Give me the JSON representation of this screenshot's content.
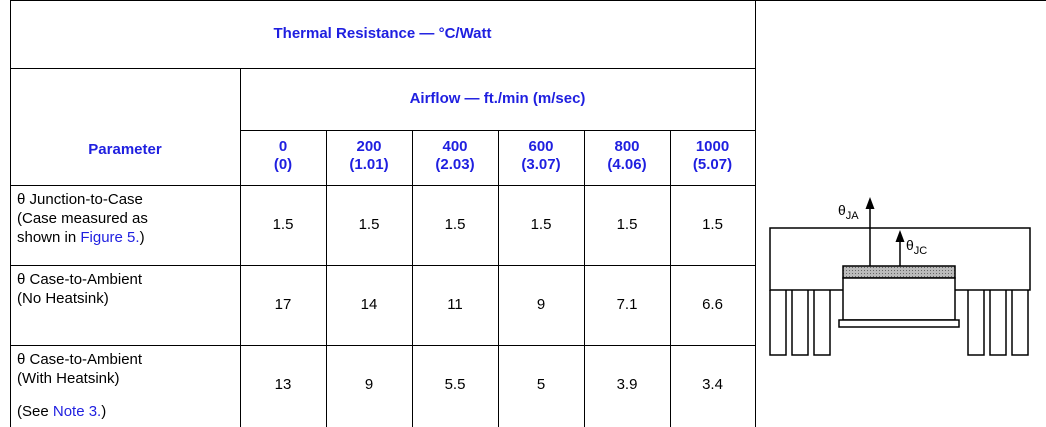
{
  "table": {
    "title": "Thermal Resistance — °C/Watt",
    "airflow": "Airflow — ft./min (m/sec)",
    "parameter_header": "Parameter",
    "columns": [
      {
        "flow": "0",
        "ms": "(0)"
      },
      {
        "flow": "200",
        "ms": "(1.01)"
      },
      {
        "flow": "400",
        "ms": "(2.03)"
      },
      {
        "flow": "600",
        "ms": "(3.07)"
      },
      {
        "flow": "800",
        "ms": "(4.06)"
      },
      {
        "flow": "1000",
        "ms": "(5.07)"
      }
    ],
    "rows": [
      {
        "lines": [
          "θ Junction-to-Case",
          "(Case measured as"
        ],
        "ref": {
          "prefix": "shown in ",
          "link": "Figure 5.",
          "suffix": ")"
        },
        "values": [
          "1.5",
          "1.5",
          "1.5",
          "1.5",
          "1.5",
          "1.5"
        ]
      },
      {
        "lines": [
          "θ Case-to-Ambient",
          "(No Heatsink)"
        ],
        "values": [
          "17",
          "14",
          "11",
          "9",
          "7.1",
          "6.6"
        ]
      },
      {
        "lines": [
          "θ Case-to-Ambient",
          "(With Heatsink)"
        ],
        "ref": {
          "prefix": "(See ",
          "link": "Note 3.",
          "suffix": ")"
        },
        "values": [
          "13",
          "9",
          "5.5",
          "5",
          "3.9",
          "3.4"
        ]
      }
    ]
  },
  "diagram": {
    "ja": {
      "symbol": "θ",
      "sub": "JA"
    },
    "jc": {
      "symbol": "θ",
      "sub": "JC"
    }
  }
}
